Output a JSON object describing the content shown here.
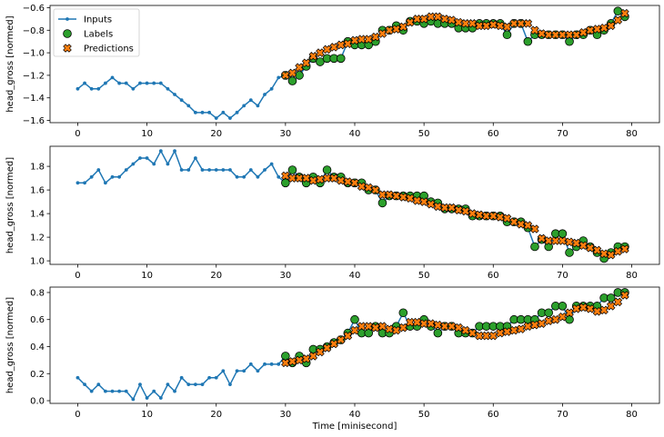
{
  "chart_data": [
    {
      "type": "line",
      "title": "",
      "xlabel": "",
      "ylabel": "head_gross [normed]",
      "xlim": [
        -4,
        84
      ],
      "ylim": [
        -1.62,
        -0.58
      ],
      "xticks": [
        0,
        10,
        20,
        30,
        40,
        50,
        60,
        70,
        80
      ],
      "yticks": [
        -1.6,
        -1.4,
        -1.2,
        -1.0,
        -0.8,
        -0.6
      ],
      "ytick_labels": [
        "−1.6",
        "−1.4",
        "−1.2",
        "−1.0",
        "−0.8",
        "−0.6"
      ],
      "legend": {
        "placement": "top-left",
        "entries": [
          {
            "name": "Inputs",
            "color": "#1f77b4",
            "marker": "dot-line"
          },
          {
            "name": "Labels",
            "color": "#2ca02c",
            "marker": "circle"
          },
          {
            "name": "Predictions",
            "color": "#ff7f0e",
            "marker": "x"
          }
        ]
      },
      "inputs": {
        "x": [
          0,
          1,
          2,
          3,
          4,
          5,
          6,
          7,
          8,
          9,
          10,
          11,
          12,
          13,
          14,
          15,
          16,
          17,
          18,
          19,
          20,
          21,
          22,
          23,
          24,
          25,
          26,
          27,
          28,
          29,
          30,
          31,
          32,
          33,
          34,
          35,
          36,
          37,
          38,
          39,
          40,
          41,
          42,
          43,
          44,
          45,
          46,
          47,
          48,
          49,
          50,
          51,
          52,
          53,
          54,
          55,
          56,
          57,
          58,
          59,
          60,
          61,
          62,
          63,
          64,
          65,
          66,
          67,
          68,
          69,
          70,
          71,
          72,
          73,
          74,
          75,
          76,
          77,
          78,
          79
        ],
        "y": [
          -1.32,
          -1.27,
          -1.32,
          -1.32,
          -1.27,
          -1.22,
          -1.27,
          -1.27,
          -1.32,
          -1.27,
          -1.27,
          -1.27,
          -1.27,
          -1.32,
          -1.37,
          -1.42,
          -1.47,
          -1.53,
          -1.53,
          -1.53,
          -1.58,
          -1.53,
          -1.58,
          -1.53,
          -1.47,
          -1.42,
          -1.47,
          -1.37,
          -1.32,
          -1.22,
          -1.2,
          -1.25,
          -1.2,
          -1.12,
          -1.05,
          -1.08,
          -1.05,
          -1.05,
          -1.05,
          -0.9,
          -0.93,
          -0.93,
          -0.93,
          -0.9,
          -0.8,
          -0.8,
          -0.76,
          -0.8,
          -0.72,
          -0.72,
          -0.74,
          -0.72,
          -0.74,
          -0.74,
          -0.74,
          -0.78,
          -0.78,
          -0.78,
          -0.74,
          -0.74,
          -0.74,
          -0.74,
          -0.84,
          -0.74,
          -0.74,
          -0.9,
          -0.84,
          -0.84,
          -0.84,
          -0.84,
          -0.84,
          -0.9,
          -0.84,
          -0.84,
          -0.8,
          -0.84,
          -0.8,
          -0.74,
          -0.63,
          -0.68
        ]
      },
      "labels": {
        "x": [
          30,
          31,
          32,
          33,
          34,
          35,
          36,
          37,
          38,
          39,
          40,
          41,
          42,
          43,
          44,
          45,
          46,
          47,
          48,
          49,
          50,
          51,
          52,
          53,
          54,
          55,
          56,
          57,
          58,
          59,
          60,
          61,
          62,
          63,
          64,
          65,
          66,
          67,
          68,
          69,
          70,
          71,
          72,
          73,
          74,
          75,
          76,
          77,
          78,
          79
        ],
        "y": [
          -1.2,
          -1.25,
          -1.2,
          -1.12,
          -1.05,
          -1.08,
          -1.05,
          -1.05,
          -1.05,
          -0.9,
          -0.93,
          -0.93,
          -0.93,
          -0.9,
          -0.8,
          -0.8,
          -0.76,
          -0.8,
          -0.72,
          -0.72,
          -0.74,
          -0.72,
          -0.74,
          -0.74,
          -0.74,
          -0.78,
          -0.78,
          -0.78,
          -0.74,
          -0.74,
          -0.74,
          -0.74,
          -0.84,
          -0.74,
          -0.74,
          -0.9,
          -0.84,
          -0.84,
          -0.84,
          -0.84,
          -0.84,
          -0.9,
          -0.84,
          -0.84,
          -0.8,
          -0.84,
          -0.8,
          -0.74,
          -0.63,
          -0.68
        ]
      },
      "predictions": {
        "x": [
          30,
          31,
          32,
          33,
          34,
          35,
          36,
          37,
          38,
          39,
          40,
          41,
          42,
          43,
          44,
          45,
          46,
          47,
          48,
          49,
          50,
          51,
          52,
          53,
          54,
          55,
          56,
          57,
          58,
          59,
          60,
          61,
          62,
          63,
          64,
          65,
          66,
          67,
          68,
          69,
          70,
          71,
          72,
          73,
          74,
          75,
          76,
          77,
          78,
          79
        ],
        "y": [
          -1.2,
          -1.18,
          -1.13,
          -1.09,
          -1.03,
          -1.0,
          -0.97,
          -0.95,
          -0.93,
          -0.92,
          -0.89,
          -0.88,
          -0.88,
          -0.86,
          -0.83,
          -0.8,
          -0.79,
          -0.77,
          -0.73,
          -0.7,
          -0.7,
          -0.68,
          -0.68,
          -0.7,
          -0.71,
          -0.73,
          -0.74,
          -0.74,
          -0.76,
          -0.76,
          -0.75,
          -0.76,
          -0.77,
          -0.74,
          -0.74,
          -0.74,
          -0.8,
          -0.83,
          -0.84,
          -0.84,
          -0.84,
          -0.84,
          -0.84,
          -0.82,
          -0.8,
          -0.79,
          -0.78,
          -0.76,
          -0.71,
          -0.65
        ]
      }
    },
    {
      "type": "line",
      "title": "",
      "xlabel": "",
      "ylabel": "head_gross [normed]",
      "xlim": [
        -4,
        84
      ],
      "ylim": [
        0.97,
        1.97
      ],
      "xticks": [
        0,
        10,
        20,
        30,
        40,
        50,
        60,
        70,
        80
      ],
      "yticks": [
        1.0,
        1.2,
        1.4,
        1.6,
        1.8
      ],
      "ytick_labels": [
        "1.0",
        "1.2",
        "1.4",
        "1.6",
        "1.8"
      ],
      "inputs": {
        "x": [
          0,
          1,
          2,
          3,
          4,
          5,
          6,
          7,
          8,
          9,
          10,
          11,
          12,
          13,
          14,
          15,
          16,
          17,
          18,
          19,
          20,
          21,
          22,
          23,
          24,
          25,
          26,
          27,
          28,
          29,
          30,
          31,
          32,
          33,
          34,
          35,
          36,
          37,
          38,
          39,
          40,
          41,
          42,
          43,
          44,
          45,
          46,
          47,
          48,
          49,
          50,
          51,
          52,
          53,
          54,
          55,
          56,
          57,
          58,
          59,
          60,
          61,
          62,
          63,
          64,
          65,
          66,
          67,
          68,
          69,
          70,
          71,
          72,
          73,
          74,
          75,
          76,
          77,
          78,
          79
        ],
        "y": [
          1.66,
          1.66,
          1.71,
          1.77,
          1.66,
          1.71,
          1.71,
          1.77,
          1.82,
          1.87,
          1.87,
          1.82,
          1.93,
          1.82,
          1.93,
          1.77,
          1.77,
          1.87,
          1.77,
          1.77,
          1.77,
          1.77,
          1.77,
          1.71,
          1.71,
          1.77,
          1.71,
          1.77,
          1.82,
          1.71,
          1.66,
          1.77,
          1.71,
          1.66,
          1.71,
          1.66,
          1.77,
          1.71,
          1.71,
          1.66,
          1.66,
          1.66,
          1.6,
          1.6,
          1.49,
          1.55,
          1.55,
          1.55,
          1.55,
          1.55,
          1.55,
          1.5,
          1.49,
          1.44,
          1.44,
          1.44,
          1.44,
          1.38,
          1.38,
          1.38,
          1.38,
          1.38,
          1.33,
          1.33,
          1.33,
          1.28,
          1.12,
          1.18,
          1.12,
          1.23,
          1.23,
          1.07,
          1.12,
          1.17,
          1.12,
          1.07,
          1.02,
          1.07,
          1.12,
          1.12
        ]
      },
      "labels": {
        "x": [
          30,
          31,
          32,
          33,
          34,
          35,
          36,
          37,
          38,
          39,
          40,
          41,
          42,
          43,
          44,
          45,
          46,
          47,
          48,
          49,
          50,
          51,
          52,
          53,
          54,
          55,
          56,
          57,
          58,
          59,
          60,
          61,
          62,
          63,
          64,
          65,
          66,
          67,
          68,
          69,
          70,
          71,
          72,
          73,
          74,
          75,
          76,
          77,
          78,
          79
        ],
        "y": [
          1.66,
          1.77,
          1.71,
          1.66,
          1.71,
          1.66,
          1.77,
          1.71,
          1.71,
          1.66,
          1.66,
          1.66,
          1.6,
          1.6,
          1.49,
          1.55,
          1.55,
          1.55,
          1.55,
          1.55,
          1.55,
          1.5,
          1.49,
          1.44,
          1.44,
          1.44,
          1.44,
          1.38,
          1.38,
          1.38,
          1.38,
          1.38,
          1.33,
          1.33,
          1.33,
          1.28,
          1.12,
          1.18,
          1.12,
          1.23,
          1.23,
          1.07,
          1.12,
          1.17,
          1.12,
          1.07,
          1.02,
          1.07,
          1.12,
          1.12
        ]
      },
      "predictions": {
        "x": [
          30,
          31,
          32,
          33,
          34,
          35,
          36,
          37,
          38,
          39,
          40,
          41,
          42,
          43,
          44,
          45,
          46,
          47,
          48,
          49,
          50,
          51,
          52,
          53,
          54,
          55,
          56,
          57,
          58,
          59,
          60,
          61,
          62,
          63,
          64,
          65,
          66,
          67,
          68,
          69,
          70,
          71,
          72,
          73,
          74,
          75,
          76,
          77,
          78,
          79
        ],
        "y": [
          1.72,
          1.7,
          1.7,
          1.7,
          1.68,
          1.69,
          1.7,
          1.7,
          1.68,
          1.67,
          1.66,
          1.63,
          1.62,
          1.6,
          1.56,
          1.56,
          1.55,
          1.54,
          1.53,
          1.51,
          1.5,
          1.48,
          1.46,
          1.45,
          1.45,
          1.43,
          1.42,
          1.4,
          1.39,
          1.38,
          1.38,
          1.37,
          1.36,
          1.33,
          1.31,
          1.3,
          1.27,
          1.19,
          1.17,
          1.17,
          1.17,
          1.16,
          1.15,
          1.13,
          1.11,
          1.09,
          1.06,
          1.05,
          1.08,
          1.1
        ]
      }
    },
    {
      "type": "line",
      "title": "",
      "xlabel": "Time [minisecond]",
      "ylabel": "head_gross [normed]",
      "xlim": [
        -4,
        84
      ],
      "ylim": [
        -0.02,
        0.84
      ],
      "xticks": [
        0,
        10,
        20,
        30,
        40,
        50,
        60,
        70,
        80
      ],
      "yticks": [
        0.0,
        0.2,
        0.4,
        0.6,
        0.8
      ],
      "ytick_labels": [
        "0.0",
        "0.2",
        "0.4",
        "0.6",
        "0.8"
      ],
      "inputs": {
        "x": [
          0,
          1,
          2,
          3,
          4,
          5,
          6,
          7,
          8,
          9,
          10,
          11,
          12,
          13,
          14,
          15,
          16,
          17,
          18,
          19,
          20,
          21,
          22,
          23,
          24,
          25,
          26,
          27,
          28,
          29,
          30,
          31,
          32,
          33,
          34,
          35,
          36,
          37,
          38,
          39,
          40,
          41,
          42,
          43,
          44,
          45,
          46,
          47,
          48,
          49,
          50,
          51,
          52,
          53,
          54,
          55,
          56,
          57,
          58,
          59,
          60,
          61,
          62,
          63,
          64,
          65,
          66,
          67,
          68,
          69,
          70,
          71,
          72,
          73,
          74,
          75,
          76,
          77,
          78,
          79
        ],
        "y": [
          0.17,
          0.12,
          0.07,
          0.12,
          0.07,
          0.07,
          0.07,
          0.07,
          0.01,
          0.12,
          0.02,
          0.07,
          0.02,
          0.12,
          0.07,
          0.17,
          0.12,
          0.12,
          0.12,
          0.17,
          0.17,
          0.22,
          0.12,
          0.22,
          0.22,
          0.27,
          0.22,
          0.27,
          0.27,
          0.27,
          0.33,
          0.28,
          0.33,
          0.28,
          0.38,
          0.38,
          0.4,
          0.43,
          0.45,
          0.5,
          0.6,
          0.5,
          0.5,
          0.55,
          0.5,
          0.5,
          0.55,
          0.65,
          0.55,
          0.55,
          0.6,
          0.55,
          0.5,
          0.55,
          0.55,
          0.5,
          0.5,
          0.5,
          0.55,
          0.55,
          0.55,
          0.55,
          0.55,
          0.6,
          0.6,
          0.6,
          0.6,
          0.65,
          0.65,
          0.7,
          0.7,
          0.6,
          0.7,
          0.7,
          0.7,
          0.7,
          0.76,
          0.76,
          0.8,
          0.8
        ]
      },
      "labels": {
        "x": [
          30,
          31,
          32,
          33,
          34,
          35,
          36,
          37,
          38,
          39,
          40,
          41,
          42,
          43,
          44,
          45,
          46,
          47,
          48,
          49,
          50,
          51,
          52,
          53,
          54,
          55,
          56,
          57,
          58,
          59,
          60,
          61,
          62,
          63,
          64,
          65,
          66,
          67,
          68,
          69,
          70,
          71,
          72,
          73,
          74,
          75,
          76,
          77,
          78,
          79
        ],
        "y": [
          0.33,
          0.28,
          0.33,
          0.28,
          0.38,
          0.38,
          0.4,
          0.43,
          0.45,
          0.5,
          0.6,
          0.5,
          0.5,
          0.55,
          0.5,
          0.5,
          0.55,
          0.65,
          0.55,
          0.55,
          0.6,
          0.55,
          0.5,
          0.55,
          0.55,
          0.5,
          0.5,
          0.5,
          0.55,
          0.55,
          0.55,
          0.55,
          0.55,
          0.6,
          0.6,
          0.6,
          0.6,
          0.65,
          0.65,
          0.7,
          0.7,
          0.6,
          0.7,
          0.7,
          0.7,
          0.7,
          0.76,
          0.76,
          0.8,
          0.8
        ]
      },
      "predictions": {
        "x": [
          30,
          31,
          32,
          33,
          34,
          35,
          36,
          37,
          38,
          39,
          40,
          41,
          42,
          43,
          44,
          45,
          46,
          47,
          48,
          49,
          50,
          51,
          52,
          53,
          54,
          55,
          56,
          57,
          58,
          59,
          60,
          61,
          62,
          63,
          64,
          65,
          66,
          67,
          68,
          69,
          70,
          71,
          72,
          73,
          74,
          75,
          76,
          77,
          78,
          79
        ],
        "y": [
          0.28,
          0.29,
          0.3,
          0.31,
          0.33,
          0.36,
          0.39,
          0.42,
          0.45,
          0.48,
          0.52,
          0.55,
          0.55,
          0.54,
          0.55,
          0.53,
          0.52,
          0.54,
          0.58,
          0.58,
          0.57,
          0.57,
          0.56,
          0.55,
          0.55,
          0.54,
          0.52,
          0.5,
          0.48,
          0.48,
          0.48,
          0.5,
          0.51,
          0.52,
          0.53,
          0.55,
          0.56,
          0.57,
          0.59,
          0.6,
          0.62,
          0.65,
          0.68,
          0.69,
          0.68,
          0.66,
          0.67,
          0.7,
          0.73,
          0.78
        ]
      }
    }
  ],
  "colors": {
    "inputs": "#1f77b4",
    "labels": "#2ca02c",
    "predictions": "#ff7f0e",
    "edge": "#000000"
  }
}
